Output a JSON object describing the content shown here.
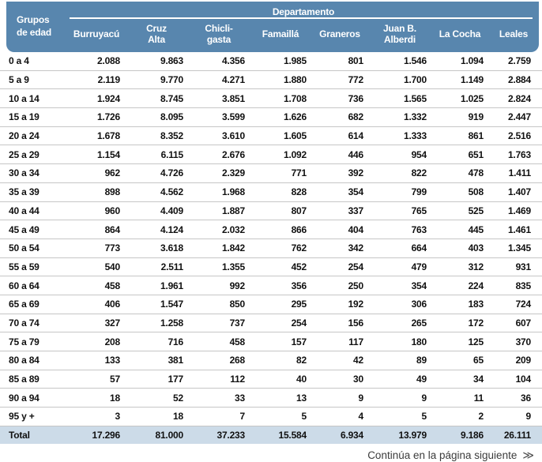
{
  "colors": {
    "header_bg": "#5886ae",
    "total_bg": "#ccdbe8",
    "divider": "#c6c6c6"
  },
  "header": {
    "group_column_label": "Grupos\nde edad",
    "department_band_label": "Departamento",
    "columns": [
      "Burruyacú",
      "Cruz\nAlta",
      "Chicli-\ngasta",
      "Famaillá",
      "Graneros",
      "Juan B.\nAlberdi",
      "La Cocha",
      "Leales"
    ]
  },
  "table": {
    "rows": [
      {
        "label": "0 a 4",
        "values": [
          "2.088",
          "9.863",
          "4.356",
          "1.985",
          "801",
          "1.546",
          "1.094",
          "2.759"
        ]
      },
      {
        "label": "5 a 9",
        "values": [
          "2.119",
          "9.770",
          "4.271",
          "1.880",
          "772",
          "1.700",
          "1.149",
          "2.884"
        ]
      },
      {
        "label": "10 a 14",
        "values": [
          "1.924",
          "8.745",
          "3.851",
          "1.708",
          "736",
          "1.565",
          "1.025",
          "2.824"
        ]
      },
      {
        "label": "15 a 19",
        "values": [
          "1.726",
          "8.095",
          "3.599",
          "1.626",
          "682",
          "1.332",
          "919",
          "2.447"
        ]
      },
      {
        "label": "20 a 24",
        "values": [
          "1.678",
          "8.352",
          "3.610",
          "1.605",
          "614",
          "1.333",
          "861",
          "2.516"
        ]
      },
      {
        "label": "25 a 29",
        "values": [
          "1.154",
          "6.115",
          "2.676",
          "1.092",
          "446",
          "954",
          "651",
          "1.763"
        ]
      },
      {
        "label": "30 a 34",
        "values": [
          "962",
          "4.726",
          "2.329",
          "771",
          "392",
          "822",
          "478",
          "1.411"
        ]
      },
      {
        "label": "35 a 39",
        "values": [
          "898",
          "4.562",
          "1.968",
          "828",
          "354",
          "799",
          "508",
          "1.407"
        ]
      },
      {
        "label": "40 a 44",
        "values": [
          "960",
          "4.409",
          "1.887",
          "807",
          "337",
          "765",
          "525",
          "1.469"
        ]
      },
      {
        "label": "45 a 49",
        "values": [
          "864",
          "4.124",
          "2.032",
          "866",
          "404",
          "763",
          "445",
          "1.461"
        ]
      },
      {
        "label": "50 a 54",
        "values": [
          "773",
          "3.618",
          "1.842",
          "762",
          "342",
          "664",
          "403",
          "1.345"
        ]
      },
      {
        "label": "55 a 59",
        "values": [
          "540",
          "2.511",
          "1.355",
          "452",
          "254",
          "479",
          "312",
          "931"
        ]
      },
      {
        "label": "60 a 64",
        "values": [
          "458",
          "1.961",
          "992",
          "356",
          "250",
          "354",
          "224",
          "835"
        ]
      },
      {
        "label": "65 a 69",
        "values": [
          "406",
          "1.547",
          "850",
          "295",
          "192",
          "306",
          "183",
          "724"
        ]
      },
      {
        "label": "70 a 74",
        "values": [
          "327",
          "1.258",
          "737",
          "254",
          "156",
          "265",
          "172",
          "607"
        ]
      },
      {
        "label": "75 a 79",
        "values": [
          "208",
          "716",
          "458",
          "157",
          "117",
          "180",
          "125",
          "370"
        ]
      },
      {
        "label": "80 a 84",
        "values": [
          "133",
          "381",
          "268",
          "82",
          "42",
          "89",
          "65",
          "209"
        ]
      },
      {
        "label": "85 a 89",
        "values": [
          "57",
          "177",
          "112",
          "40",
          "30",
          "49",
          "34",
          "104"
        ]
      },
      {
        "label": "90 a 94",
        "values": [
          "18",
          "52",
          "33",
          "13",
          "9",
          "9",
          "11",
          "36"
        ]
      },
      {
        "label": "95 y +",
        "values": [
          "3",
          "18",
          "7",
          "5",
          "4",
          "5",
          "2",
          "9"
        ]
      }
    ],
    "total": {
      "label": "Total",
      "values": [
        "17.296",
        "81.000",
        "37.233",
        "15.584",
        "6.934",
        "13.979",
        "9.186",
        "26.111"
      ]
    }
  },
  "footer": {
    "continuation_text": "Continúa en la página siguiente",
    "next_icon": "≫"
  }
}
